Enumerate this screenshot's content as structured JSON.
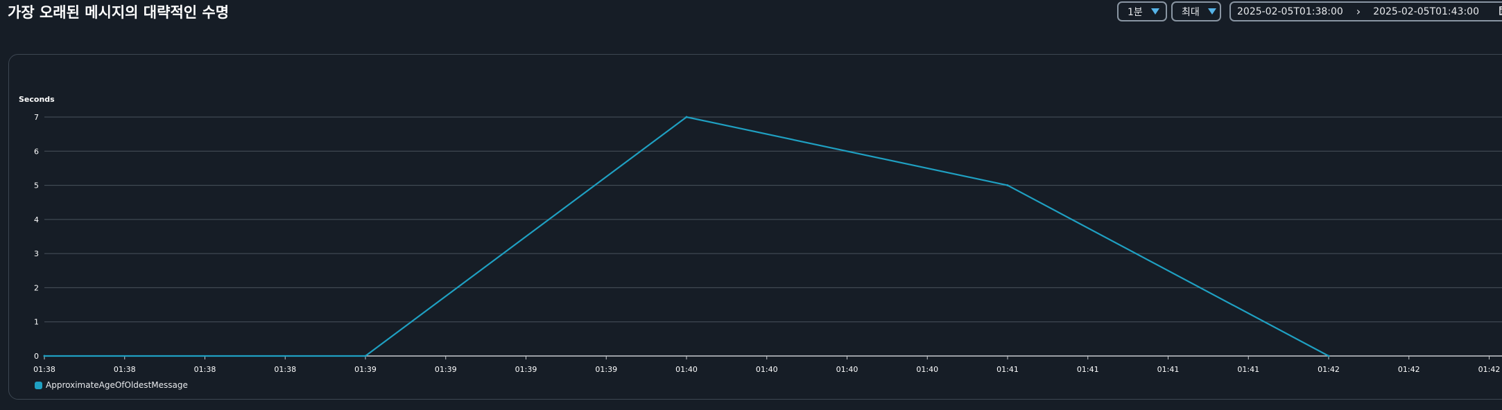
{
  "header": {
    "title": "가장 오래된 메시지의 대략적인 수명",
    "period": "1분",
    "statistic": "최대",
    "range_start": "2025-02-05T01:38:00",
    "range_end": "2025-02-05T01:43:00"
  },
  "colors": {
    "line": "#1fa0c2",
    "grid": "#4a535d",
    "background": "#161d26"
  },
  "chart_data": {
    "type": "line",
    "ylabel": "Seconds",
    "ylim": [
      0,
      7
    ],
    "yticks": [
      0,
      1,
      2,
      3,
      4,
      5,
      6,
      7
    ],
    "xlim": [
      0,
      4.5
    ],
    "xticks": [
      {
        "t": 0.0,
        "label": "01:38"
      },
      {
        "t": 0.25,
        "label": "01:38"
      },
      {
        "t": 0.5,
        "label": "01:38"
      },
      {
        "t": 0.75,
        "label": "01:38"
      },
      {
        "t": 1.0,
        "label": "01:39"
      },
      {
        "t": 1.25,
        "label": "01:39"
      },
      {
        "t": 1.5,
        "label": "01:39"
      },
      {
        "t": 1.75,
        "label": "01:39"
      },
      {
        "t": 2.0,
        "label": "01:40"
      },
      {
        "t": 2.25,
        "label": "01:40"
      },
      {
        "t": 2.5,
        "label": "01:40"
      },
      {
        "t": 2.75,
        "label": "01:40"
      },
      {
        "t": 3.0,
        "label": "01:41"
      },
      {
        "t": 3.25,
        "label": "01:41"
      },
      {
        "t": 3.5,
        "label": "01:41"
      },
      {
        "t": 3.75,
        "label": "01:41"
      },
      {
        "t": 4.0,
        "label": "01:42"
      },
      {
        "t": 4.25,
        "label": "01:42"
      },
      {
        "t": 4.5,
        "label": "01:42"
      }
    ],
    "series": [
      {
        "name": "ApproximateAgeOfOldestMessage",
        "x_minutes": [
          0,
          1,
          2,
          3,
          4
        ],
        "values": [
          0,
          0,
          7,
          5,
          0
        ]
      }
    ]
  }
}
